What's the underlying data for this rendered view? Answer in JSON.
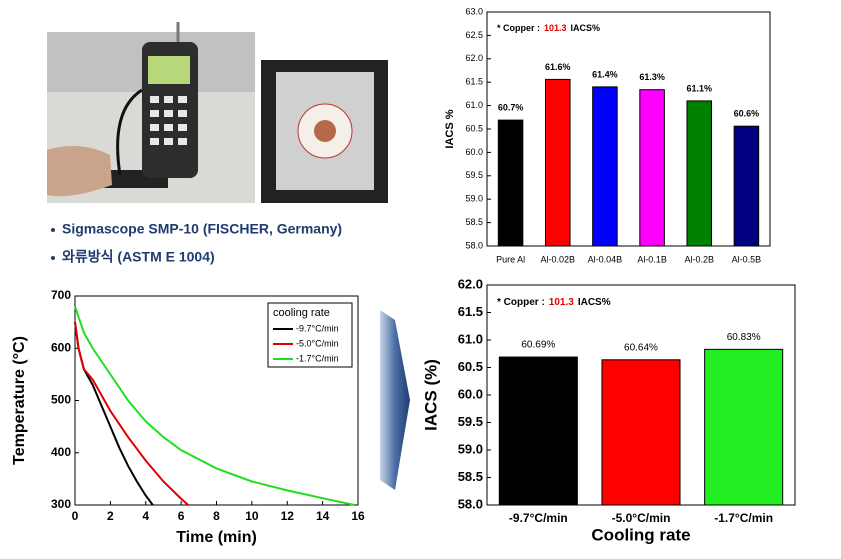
{
  "page": {
    "bullets": [
      "Sigmascope SMP-10 (FISCHER, Germany)",
      "와류방식 (ASTM E 1004)"
    ]
  },
  "chart_data": [
    {
      "type": "bar",
      "ylabel": "IACS %",
      "annotation": {
        "prefix": "* Copper :",
        "value": "101.3",
        "suffix": "IACS%"
      },
      "categories": [
        "Pure Al",
        "Al-0.02B",
        "Al-0.04B",
        "Al-0.1B",
        "Al-0.2B",
        "Al-0.5B"
      ],
      "values": [
        60.69,
        61.56,
        61.4,
        61.34,
        61.1,
        60.56
      ],
      "value_labels": [
        "60.7%",
        "61.6%",
        "61.4%",
        "61.3%",
        "61.1%",
        "60.6%"
      ],
      "colors": [
        "#000000",
        "#ff0000",
        "#0000ff",
        "#ff00ff",
        "#008000",
        "#000080"
      ],
      "ylim": [
        58,
        63
      ],
      "yticks": [
        {
          "value": 58,
          "label": "58.0"
        },
        {
          "value": 58.5,
          "label": "58.5"
        },
        {
          "value": 59,
          "label": "59.0"
        },
        {
          "value": 59.5,
          "label": "59.5"
        },
        {
          "value": 60,
          "label": "60.0"
        },
        {
          "value": 60.5,
          "label": "60.5"
        },
        {
          "value": 61,
          "label": "61.0"
        },
        {
          "value": 61.5,
          "label": "61.5"
        },
        {
          "value": 62,
          "label": "62.0"
        },
        {
          "value": 62.5,
          "label": "62.5"
        },
        {
          "value": 63,
          "label": "63.0"
        }
      ]
    },
    {
      "type": "line",
      "xlabel": "Time (min)",
      "ylabel": "Temperature (°C)",
      "legend_title": "cooling rate",
      "xlim": [
        0,
        16
      ],
      "xticks": [
        0,
        2,
        4,
        6,
        8,
        10,
        12,
        14,
        16
      ],
      "ylim": [
        300,
        700
      ],
      "yticks": [
        300,
        400,
        500,
        600,
        700
      ],
      "series": [
        {
          "name": "-9.7°C/min",
          "color": "#000000",
          "x": [
            0,
            0.2,
            0.5,
            1,
            1.5,
            2,
            2.5,
            3,
            3.5,
            4,
            4.4
          ],
          "values": [
            650,
            600,
            560,
            530,
            490,
            450,
            410,
            375,
            345,
            318,
            300
          ]
        },
        {
          "name": "-5.0°C/min",
          "color": "#e00000",
          "x": [
            0,
            0.2,
            0.5,
            1,
            1.5,
            2,
            3,
            4,
            5,
            6,
            6.4
          ],
          "values": [
            650,
            600,
            560,
            540,
            510,
            480,
            430,
            385,
            345,
            312,
            300
          ]
        },
        {
          "name": "-1.7°C/min",
          "color": "#22dd22",
          "x": [
            0,
            0.5,
            1,
            2,
            3,
            4,
            5,
            6,
            8,
            10,
            12,
            14,
            15.8
          ],
          "values": [
            680,
            630,
            600,
            550,
            500,
            460,
            430,
            405,
            370,
            345,
            328,
            313,
            300
          ]
        }
      ]
    },
    {
      "type": "bar",
      "xlabel": "Cooling rate",
      "ylabel": "IACS (%)",
      "annotation": {
        "prefix": "* Copper :",
        "value": "101.3",
        "suffix": "IACS%"
      },
      "categories": [
        "-9.7°C/min",
        "-5.0°C/min",
        "-1.7°C/min"
      ],
      "values": [
        60.69,
        60.64,
        60.83
      ],
      "value_labels": [
        "60.69%",
        "60.64%",
        "60.83%"
      ],
      "colors": [
        "#000000",
        "#ff0000",
        "#22ee22"
      ],
      "ylim": [
        58,
        62
      ],
      "yticks": [
        {
          "value": 58,
          "label": "58.0"
        },
        {
          "value": 58.5,
          "label": "58.5"
        },
        {
          "value": 59,
          "label": "59.0"
        },
        {
          "value": 59.5,
          "label": "59.5"
        },
        {
          "value": 60,
          "label": "60.0"
        },
        {
          "value": 60.5,
          "label": "60.5"
        },
        {
          "value": 61,
          "label": "61.0"
        },
        {
          "value": 61.5,
          "label": "61.5"
        },
        {
          "value": 62,
          "label": "62.0"
        }
      ]
    }
  ]
}
